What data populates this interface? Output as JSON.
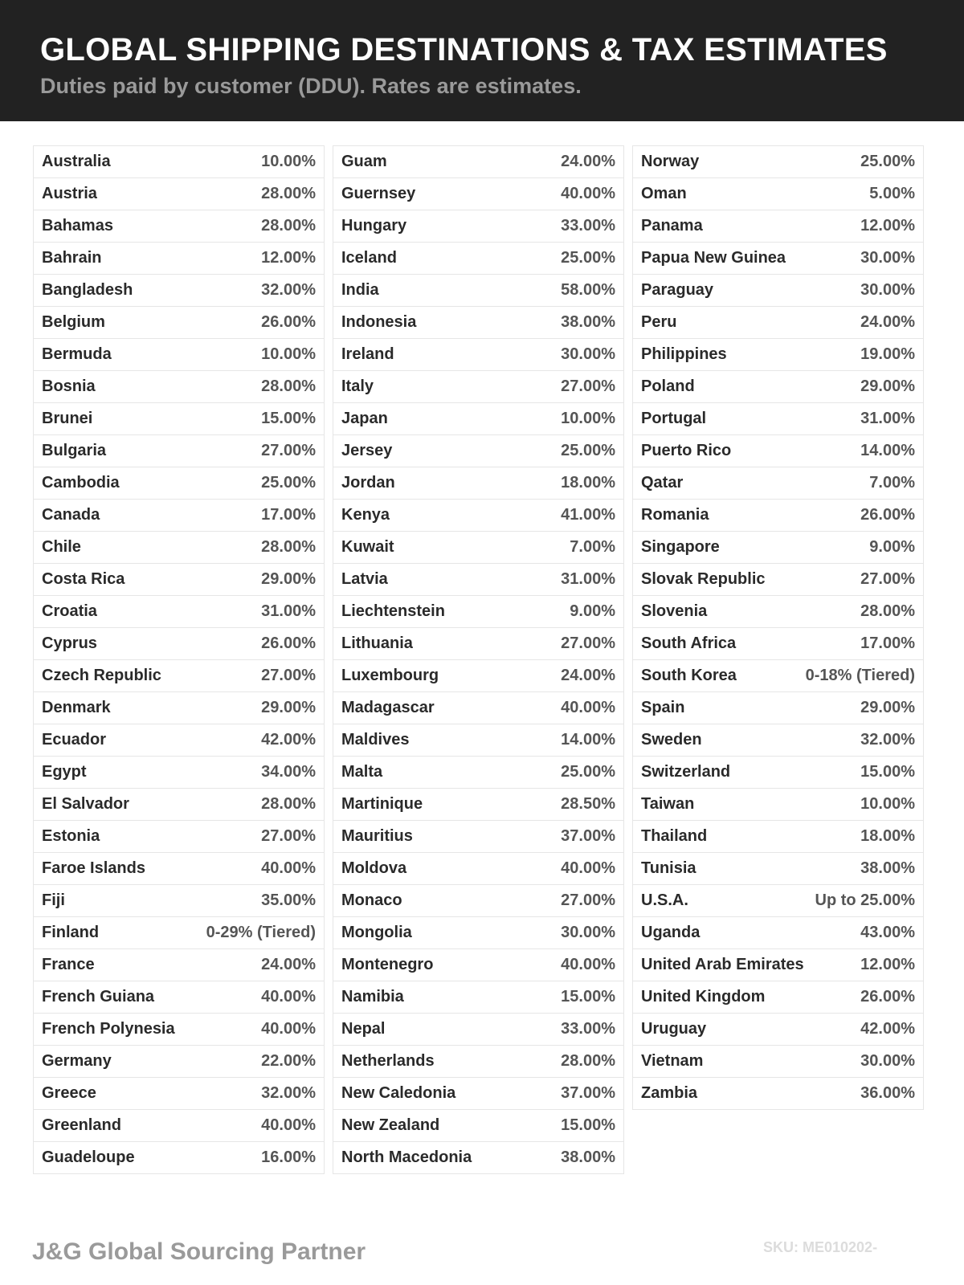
{
  "header": {
    "title": "GLOBAL SHIPPING DESTINATIONS & TAX ESTIMATES",
    "subtitle": "Duties paid by customer (DDU). Rates are estimates."
  },
  "columns": [
    [
      {
        "country": "Australia",
        "rate": "10.00%"
      },
      {
        "country": "Austria",
        "rate": "28.00%"
      },
      {
        "country": "Bahamas",
        "rate": "28.00%"
      },
      {
        "country": "Bahrain",
        "rate": "12.00%"
      },
      {
        "country": "Bangladesh",
        "rate": "32.00%"
      },
      {
        "country": "Belgium",
        "rate": "26.00%"
      },
      {
        "country": "Bermuda",
        "rate": "10.00%"
      },
      {
        "country": "Bosnia",
        "rate": "28.00%"
      },
      {
        "country": "Brunei",
        "rate": "15.00%"
      },
      {
        "country": "Bulgaria",
        "rate": "27.00%"
      },
      {
        "country": "Cambodia",
        "rate": "25.00%"
      },
      {
        "country": "Canada",
        "rate": "17.00%"
      },
      {
        "country": "Chile",
        "rate": "28.00%"
      },
      {
        "country": "Costa Rica",
        "rate": "29.00%"
      },
      {
        "country": "Croatia",
        "rate": "31.00%"
      },
      {
        "country": "Cyprus",
        "rate": "26.00%"
      },
      {
        "country": "Czech Republic",
        "rate": "27.00%"
      },
      {
        "country": "Denmark",
        "rate": "29.00%"
      },
      {
        "country": "Ecuador",
        "rate": "42.00%"
      },
      {
        "country": "Egypt",
        "rate": "34.00%"
      },
      {
        "country": "El Salvador",
        "rate": "28.00%"
      },
      {
        "country": "Estonia",
        "rate": "27.00%"
      },
      {
        "country": "Faroe Islands",
        "rate": "40.00%"
      },
      {
        "country": "Fiji",
        "rate": "35.00%"
      },
      {
        "country": "Finland",
        "rate": "0-29% (Tiered)"
      },
      {
        "country": "France",
        "rate": "24.00%"
      },
      {
        "country": "French Guiana",
        "rate": "40.00%"
      },
      {
        "country": "French Polynesia",
        "rate": "40.00%"
      },
      {
        "country": "Germany",
        "rate": "22.00%"
      },
      {
        "country": "Greece",
        "rate": "32.00%"
      },
      {
        "country": "Greenland",
        "rate": "40.00%"
      },
      {
        "country": "Guadeloupe",
        "rate": "16.00%"
      }
    ],
    [
      {
        "country": "Guam",
        "rate": "24.00%"
      },
      {
        "country": "Guernsey",
        "rate": "40.00%"
      },
      {
        "country": "Hungary",
        "rate": "33.00%"
      },
      {
        "country": "Iceland",
        "rate": "25.00%"
      },
      {
        "country": "India",
        "rate": "58.00%"
      },
      {
        "country": "Indonesia",
        "rate": "38.00%"
      },
      {
        "country": "Ireland",
        "rate": "30.00%"
      },
      {
        "country": "Italy",
        "rate": "27.00%"
      },
      {
        "country": "Japan",
        "rate": "10.00%"
      },
      {
        "country": "Jersey",
        "rate": "25.00%"
      },
      {
        "country": "Jordan",
        "rate": "18.00%"
      },
      {
        "country": "Kenya",
        "rate": "41.00%"
      },
      {
        "country": "Kuwait",
        "rate": "7.00%"
      },
      {
        "country": "Latvia",
        "rate": "31.00%"
      },
      {
        "country": "Liechtenstein",
        "rate": "9.00%"
      },
      {
        "country": "Lithuania",
        "rate": "27.00%"
      },
      {
        "country": "Luxembourg",
        "rate": "24.00%"
      },
      {
        "country": "Madagascar",
        "rate": "40.00%"
      },
      {
        "country": "Maldives",
        "rate": "14.00%"
      },
      {
        "country": "Malta",
        "rate": "25.00%"
      },
      {
        "country": "Martinique",
        "rate": "28.50%"
      },
      {
        "country": "Mauritius",
        "rate": "37.00%"
      },
      {
        "country": "Moldova",
        "rate": "40.00%"
      },
      {
        "country": "Monaco",
        "rate": "27.00%"
      },
      {
        "country": "Mongolia",
        "rate": "30.00%"
      },
      {
        "country": "Montenegro",
        "rate": "40.00%"
      },
      {
        "country": "Namibia",
        "rate": "15.00%"
      },
      {
        "country": "Nepal",
        "rate": "33.00%"
      },
      {
        "country": "Netherlands",
        "rate": "28.00%"
      },
      {
        "country": "New Caledonia",
        "rate": "37.00%"
      },
      {
        "country": "New Zealand",
        "rate": "15.00%"
      },
      {
        "country": "North Macedonia",
        "rate": "38.00%"
      }
    ],
    [
      {
        "country": "Norway",
        "rate": "25.00%"
      },
      {
        "country": "Oman",
        "rate": "5.00%"
      },
      {
        "country": "Panama",
        "rate": "12.00%"
      },
      {
        "country": "Papua New Guinea",
        "rate": "30.00%"
      },
      {
        "country": "Paraguay",
        "rate": "30.00%"
      },
      {
        "country": "Peru",
        "rate": "24.00%"
      },
      {
        "country": "Philippines",
        "rate": "19.00%"
      },
      {
        "country": "Poland",
        "rate": "29.00%"
      },
      {
        "country": "Portugal",
        "rate": "31.00%"
      },
      {
        "country": "Puerto Rico",
        "rate": "14.00%"
      },
      {
        "country": "Qatar",
        "rate": "7.00%"
      },
      {
        "country": "Romania",
        "rate": "26.00%"
      },
      {
        "country": "Singapore",
        "rate": "9.00%"
      },
      {
        "country": "Slovak Republic",
        "rate": "27.00%"
      },
      {
        "country": "Slovenia",
        "rate": "28.00%"
      },
      {
        "country": "South Africa",
        "rate": "17.00%"
      },
      {
        "country": "South Korea",
        "rate": "0-18% (Tiered)"
      },
      {
        "country": "Spain",
        "rate": "29.00%"
      },
      {
        "country": "Sweden",
        "rate": "32.00%"
      },
      {
        "country": "Switzerland",
        "rate": "15.00%"
      },
      {
        "country": "Taiwan",
        "rate": "10.00%"
      },
      {
        "country": "Thailand",
        "rate": "18.00%"
      },
      {
        "country": "Tunisia",
        "rate": "38.00%"
      },
      {
        "country": "U.S.A.",
        "rate": "Up to 25.00%"
      },
      {
        "country": "Uganda",
        "rate": "43.00%"
      },
      {
        "country": "United Arab Emirates",
        "rate": "12.00%"
      },
      {
        "country": "United Kingdom",
        "rate": "26.00%"
      },
      {
        "country": "Uruguay",
        "rate": "42.00%"
      },
      {
        "country": "Vietnam",
        "rate": "30.00%"
      },
      {
        "country": "Zambia",
        "rate": "36.00%"
      }
    ]
  ],
  "footer": {
    "brand": "J&G Global Sourcing Partner",
    "sku": "SKU: ME010202-"
  }
}
